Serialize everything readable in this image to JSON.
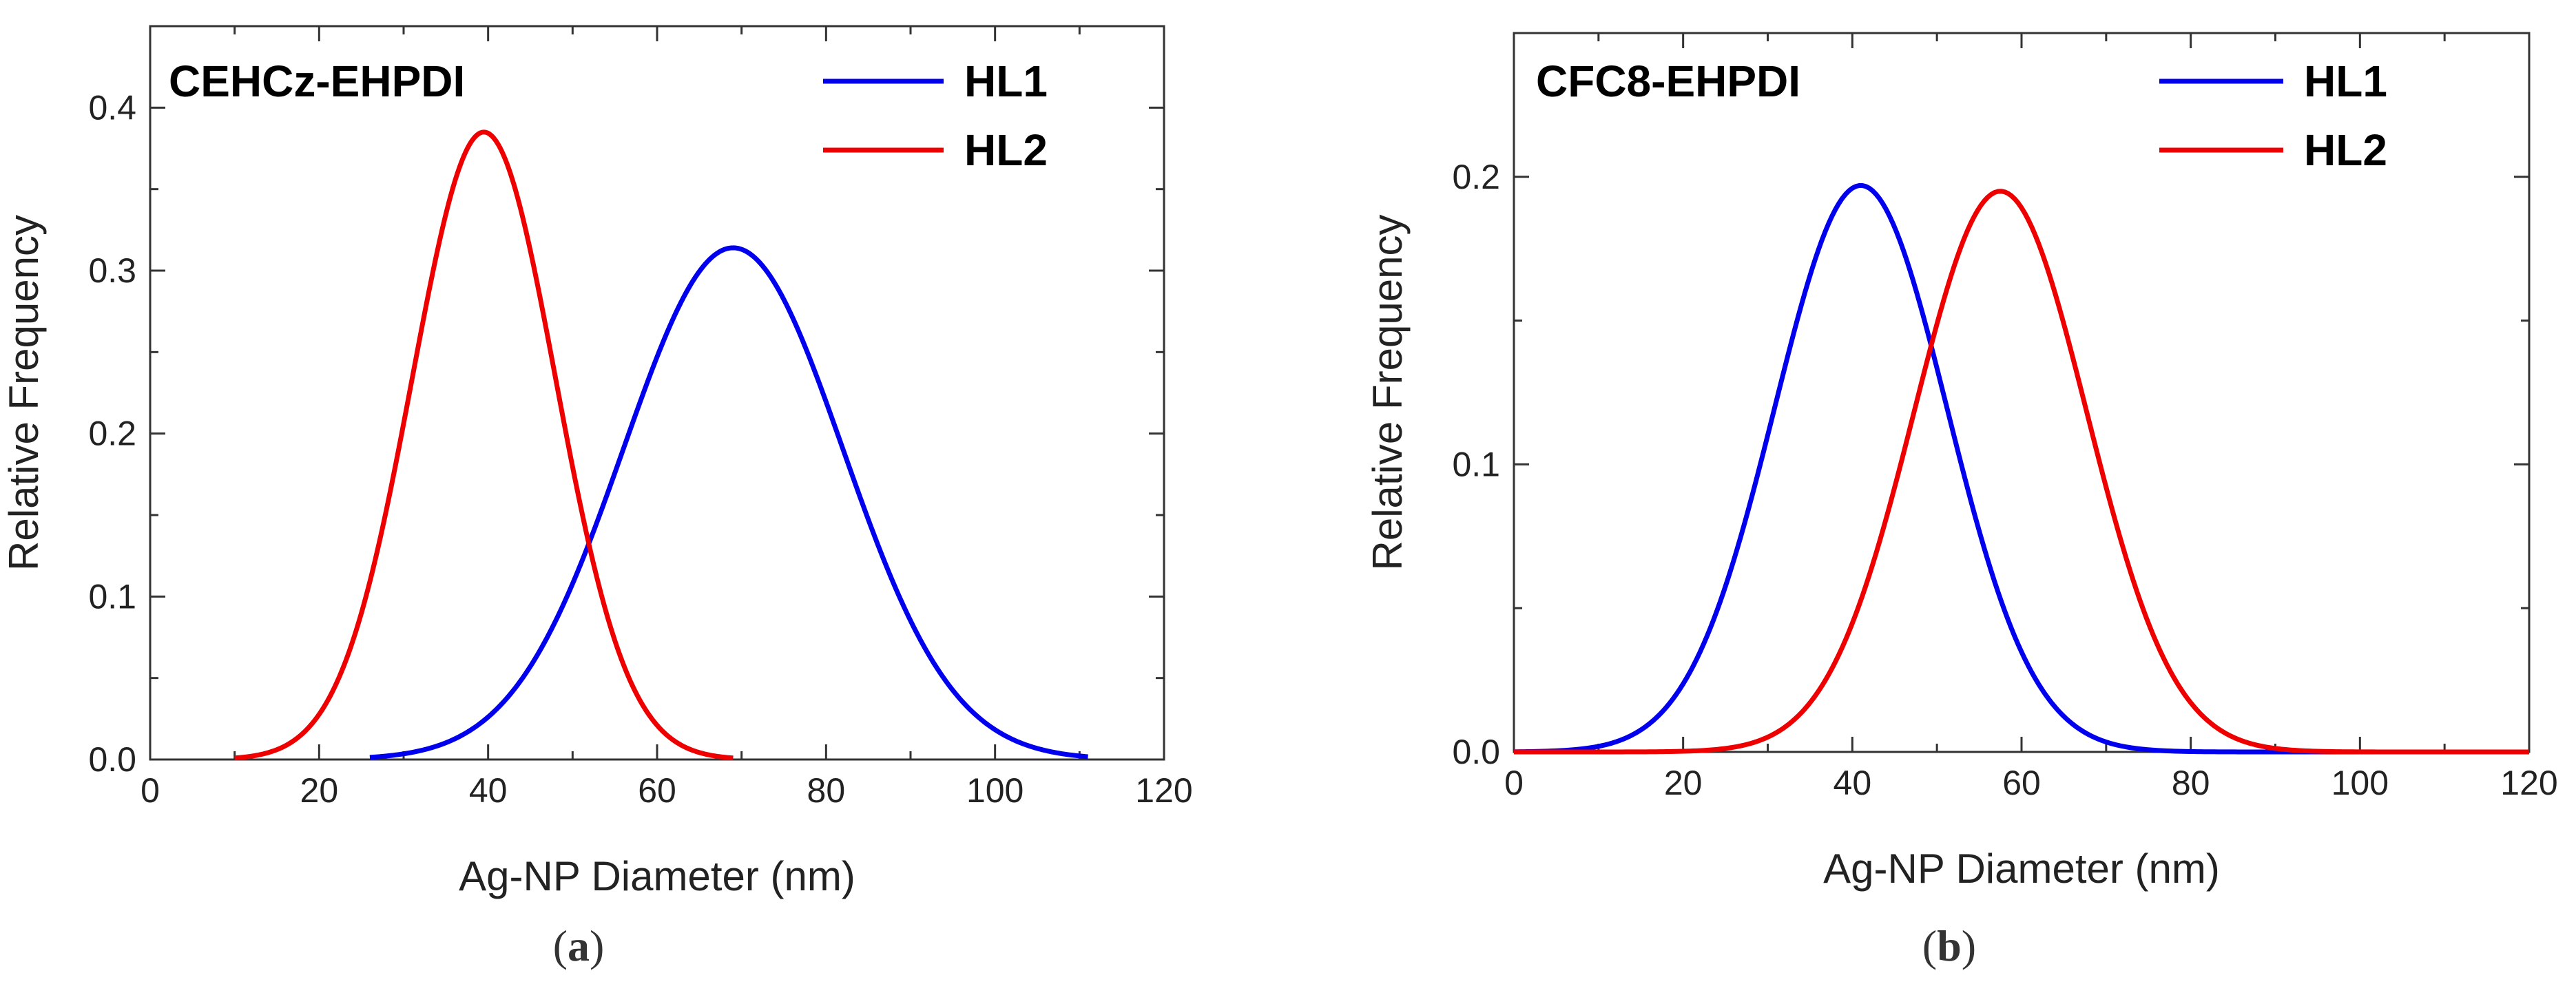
{
  "chart_data": [
    {
      "type": "line",
      "panel_label": "a",
      "title": "CEHCz-EHPDI",
      "xlabel": "Ag-NP Diameter (nm)",
      "ylabel": "Relative Frequency",
      "xlim": [
        0,
        120
      ],
      "ylim": [
        0,
        0.45
      ],
      "xticks": [
        0,
        20,
        40,
        60,
        80,
        100,
        120
      ],
      "xtick_labels": [
        "0",
        "20",
        "40",
        "60",
        "80",
        "100",
        "120"
      ],
      "yticks": [
        0.0,
        0.1,
        0.2,
        0.3,
        0.4
      ],
      "ytick_labels": [
        "0.0",
        "0.1",
        "0.2",
        "0.3",
        "0.4"
      ],
      "legend_position": "top-right",
      "series": [
        {
          "name": "HL1",
          "color": "#0000ee",
          "shape": "gaussian",
          "mean": 69,
          "sd": 13,
          "peak": 0.314,
          "x_range": [
            26,
            111
          ]
        },
        {
          "name": "HL2",
          "color": "#ee0000",
          "shape": "gaussian",
          "mean": 39.5,
          "sd": 8.5,
          "peak": 0.385,
          "x_range": [
            10,
            69
          ]
        }
      ]
    },
    {
      "type": "line",
      "panel_label": "b",
      "title": "CFC8-EHPDI",
      "xlabel": "Ag-NP Diameter (nm)",
      "ylabel": "Relative Frequency",
      "xlim": [
        0,
        120
      ],
      "ylim": [
        0,
        0.25
      ],
      "xticks": [
        0,
        20,
        40,
        60,
        80,
        100,
        120
      ],
      "xtick_labels": [
        "0",
        "20",
        "40",
        "60",
        "80",
        "100",
        "120"
      ],
      "yticks": [
        0.0,
        0.1,
        0.2
      ],
      "ytick_labels": [
        "0.0",
        "0.1",
        "0.2"
      ],
      "legend_position": "top-right",
      "series": [
        {
          "name": "HL1",
          "color": "#0000ee",
          "shape": "gaussian",
          "mean": 41,
          "sd": 10.2,
          "peak": 0.197,
          "x_range": [
            0,
            120
          ]
        },
        {
          "name": "HL2",
          "color": "#ee0000",
          "shape": "gaussian",
          "mean": 57.5,
          "sd": 10.2,
          "peak": 0.195,
          "x_range": [
            0,
            120
          ]
        }
      ]
    }
  ]
}
